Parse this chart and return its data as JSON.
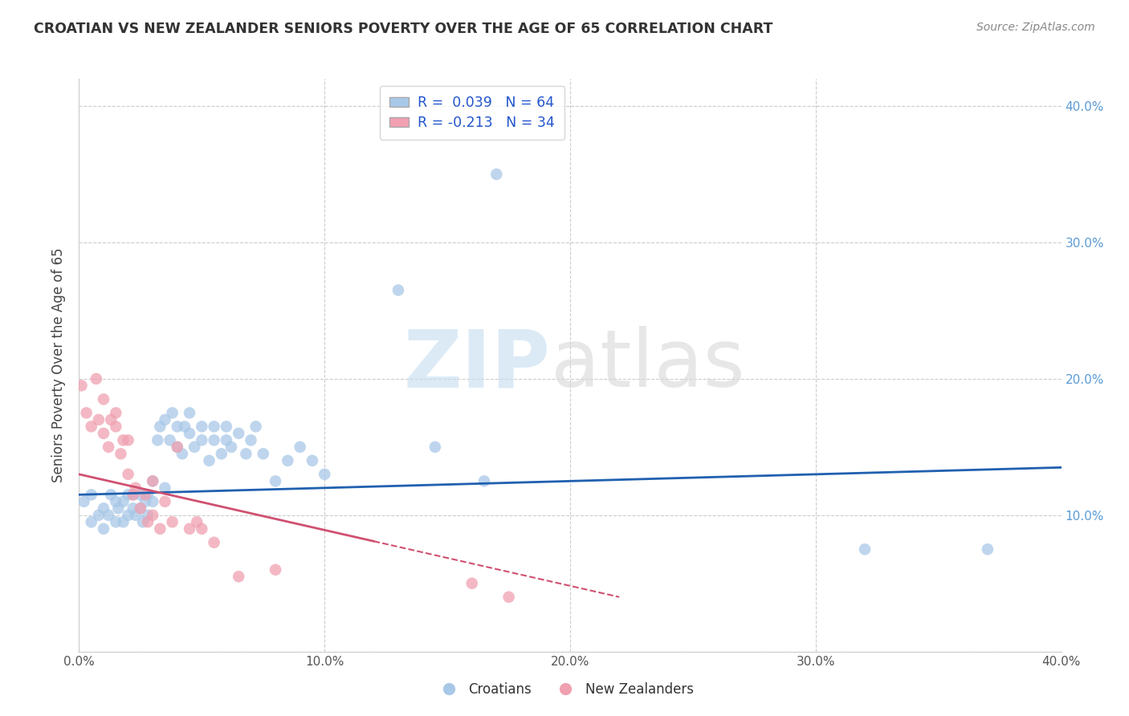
{
  "title": "CROATIAN VS NEW ZEALANDER SENIORS POVERTY OVER THE AGE OF 65 CORRELATION CHART",
  "source": "Source: ZipAtlas.com",
  "ylabel": "Seniors Poverty Over the Age of 65",
  "xlim": [
    0.0,
    0.4
  ],
  "ylim": [
    0.0,
    0.42
  ],
  "x_ticks": [
    0.0,
    0.1,
    0.2,
    0.3,
    0.4
  ],
  "x_tick_labels": [
    "0.0%",
    "10.0%",
    "20.0%",
    "30.0%",
    "40.0%"
  ],
  "y_ticks": [
    0.0,
    0.1,
    0.2,
    0.3,
    0.4
  ],
  "y_tick_labels_right": [
    "",
    "10.0%",
    "20.0%",
    "30.0%",
    "40.0%"
  ],
  "croatian_R": 0.039,
  "croatian_N": 64,
  "nz_R": -0.213,
  "nz_N": 34,
  "blue_color": "#a8c8e8",
  "pink_color": "#f0a0b0",
  "blue_line_color": "#2060b0",
  "pink_line_color": "#d05070",
  "croatian_x": [
    0.002,
    0.005,
    0.005,
    0.008,
    0.01,
    0.01,
    0.012,
    0.013,
    0.015,
    0.015,
    0.016,
    0.018,
    0.018,
    0.02,
    0.02,
    0.022,
    0.022,
    0.023,
    0.025,
    0.025,
    0.026,
    0.027,
    0.028,
    0.028,
    0.03,
    0.03,
    0.032,
    0.033,
    0.035,
    0.035,
    0.037,
    0.038,
    0.04,
    0.04,
    0.042,
    0.043,
    0.045,
    0.045,
    0.047,
    0.05,
    0.05,
    0.053,
    0.055,
    0.055,
    0.058,
    0.06,
    0.06,
    0.062,
    0.065,
    0.068,
    0.07,
    0.072,
    0.075,
    0.08,
    0.085,
    0.09,
    0.095,
    0.1,
    0.13,
    0.145,
    0.165,
    0.17,
    0.32,
    0.37
  ],
  "croatian_y": [
    0.11,
    0.095,
    0.115,
    0.1,
    0.105,
    0.09,
    0.1,
    0.115,
    0.095,
    0.11,
    0.105,
    0.11,
    0.095,
    0.115,
    0.1,
    0.105,
    0.115,
    0.1,
    0.105,
    0.115,
    0.095,
    0.11,
    0.1,
    0.115,
    0.11,
    0.125,
    0.155,
    0.165,
    0.12,
    0.17,
    0.155,
    0.175,
    0.165,
    0.15,
    0.145,
    0.165,
    0.16,
    0.175,
    0.15,
    0.155,
    0.165,
    0.14,
    0.155,
    0.165,
    0.145,
    0.155,
    0.165,
    0.15,
    0.16,
    0.145,
    0.155,
    0.165,
    0.145,
    0.125,
    0.14,
    0.15,
    0.14,
    0.13,
    0.265,
    0.15,
    0.125,
    0.35,
    0.075,
    0.075
  ],
  "nz_x": [
    0.001,
    0.003,
    0.005,
    0.007,
    0.008,
    0.01,
    0.01,
    0.012,
    0.013,
    0.015,
    0.015,
    0.017,
    0.018,
    0.02,
    0.02,
    0.022,
    0.023,
    0.025,
    0.027,
    0.028,
    0.03,
    0.03,
    0.033,
    0.035,
    0.038,
    0.04,
    0.045,
    0.048,
    0.05,
    0.055,
    0.065,
    0.08,
    0.16,
    0.175
  ],
  "nz_y": [
    0.195,
    0.175,
    0.165,
    0.2,
    0.17,
    0.16,
    0.185,
    0.15,
    0.17,
    0.165,
    0.175,
    0.145,
    0.155,
    0.13,
    0.155,
    0.115,
    0.12,
    0.105,
    0.115,
    0.095,
    0.125,
    0.1,
    0.09,
    0.11,
    0.095,
    0.15,
    0.09,
    0.095,
    0.09,
    0.08,
    0.055,
    0.06,
    0.05,
    0.04
  ]
}
